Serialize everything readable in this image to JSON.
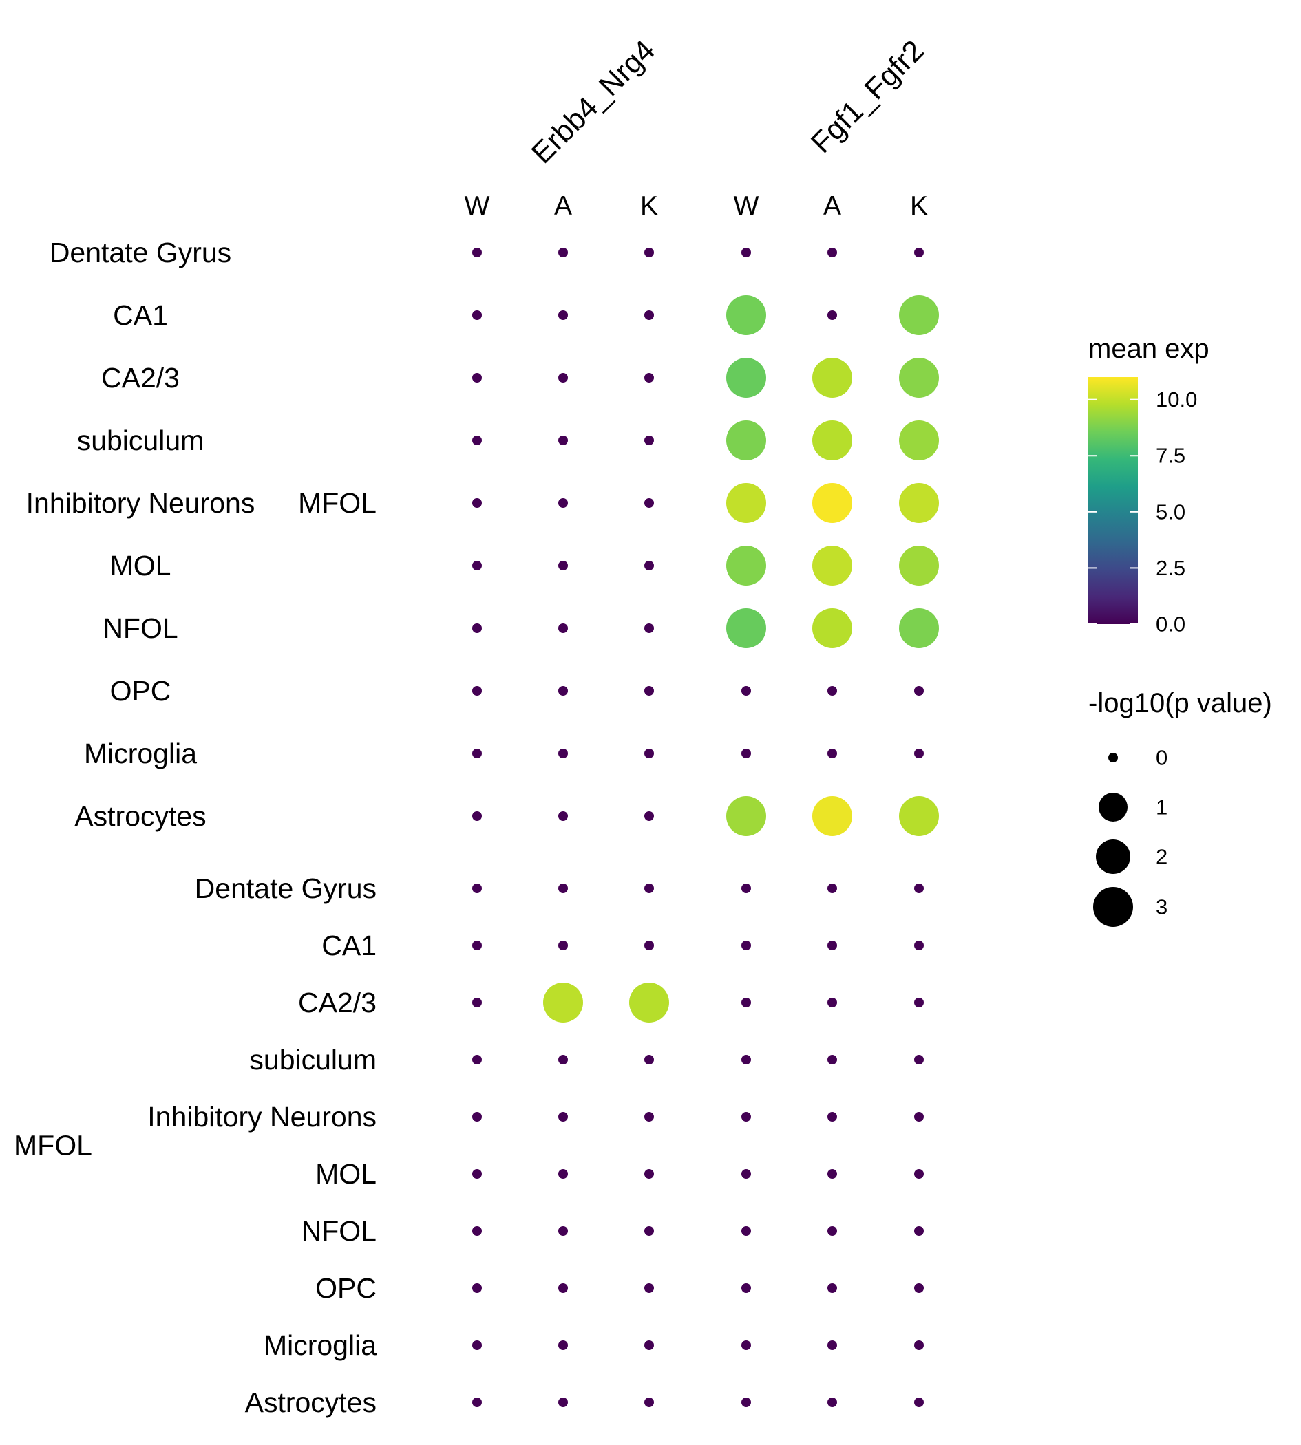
{
  "colors": {
    "viridis": [
      "#440154",
      "#482878",
      "#3e4989",
      "#31688e",
      "#26828e",
      "#1f9e89",
      "#35b779",
      "#6ece58",
      "#b5de2b",
      "#fde725"
    ]
  },
  "chart_data": {
    "type": "scatter",
    "title": "",
    "pairs": [
      "Erbb4_Nrg4",
      "Fgf1_Fgfr2"
    ],
    "conditions": [
      "W",
      "A",
      "K"
    ],
    "columns": [
      {
        "pair": "Erbb4_Nrg4",
        "condition": "W"
      },
      {
        "pair": "Erbb4_Nrg4",
        "condition": "A"
      },
      {
        "pair": "Erbb4_Nrg4",
        "condition": "K"
      },
      {
        "pair": "Fgf1_Fgfr2",
        "condition": "W"
      },
      {
        "pair": "Fgf1_Fgfr2",
        "condition": "A"
      },
      {
        "pair": "Fgf1_Fgfr2",
        "condition": "K"
      }
    ],
    "row_groups": [
      {
        "group": "MFOL",
        "rows": [
          {
            "label": "Dentate Gyrus",
            "mean_exp": [
              0,
              0,
              0,
              0,
              0,
              0
            ],
            "neglog10p": [
              0,
              0,
              0,
              0,
              0,
              0
            ]
          },
          {
            "label": "CA1",
            "mean_exp": [
              0,
              0,
              0,
              8.6,
              0,
              8.9
            ],
            "neglog10p": [
              0,
              0,
              0,
              3,
              0,
              3
            ]
          },
          {
            "label": "CA2/3",
            "mean_exp": [
              0,
              0,
              0,
              8.4,
              9.8,
              9.0
            ],
            "neglog10p": [
              0,
              0,
              0,
              3,
              3,
              3
            ]
          },
          {
            "label": "subiculum",
            "mean_exp": [
              0,
              0,
              0,
              8.8,
              9.8,
              9.3
            ],
            "neglog10p": [
              0,
              0,
              0,
              3,
              3,
              3
            ]
          },
          {
            "label": "Inhibitory Neurons",
            "mean_exp": [
              0,
              0,
              0,
              10.0,
              10.9,
              10.0
            ],
            "neglog10p": [
              0,
              0,
              0,
              3,
              3,
              3
            ]
          },
          {
            "label": "MOL",
            "mean_exp": [
              0,
              0,
              0,
              8.9,
              10.0,
              9.4
            ],
            "neglog10p": [
              0,
              0,
              0,
              3,
              3,
              3
            ]
          },
          {
            "label": "NFOL",
            "mean_exp": [
              0,
              0,
              0,
              8.4,
              9.8,
              8.8
            ],
            "neglog10p": [
              0,
              0,
              0,
              3,
              3,
              3
            ]
          },
          {
            "label": "OPC",
            "mean_exp": [
              0,
              0,
              0,
              0,
              0,
              0
            ],
            "neglog10p": [
              0,
              0,
              0,
              0,
              0,
              0
            ]
          },
          {
            "label": "Microglia",
            "mean_exp": [
              0,
              0,
              0,
              0,
              0,
              0
            ],
            "neglog10p": [
              0,
              0,
              0,
              0,
              0,
              0
            ]
          },
          {
            "label": "Astrocytes",
            "mean_exp": [
              0,
              0,
              0,
              9.4,
              10.7,
              9.8
            ],
            "neglog10p": [
              0,
              0,
              0,
              3,
              3,
              3
            ]
          }
        ]
      },
      {
        "group": "MFOL",
        "rows": [
          {
            "label": "Dentate Gyrus",
            "mean_exp": [
              0,
              0,
              0,
              0,
              0,
              0
            ],
            "neglog10p": [
              0,
              0,
              0,
              0,
              0,
              0
            ]
          },
          {
            "label": "CA1",
            "mean_exp": [
              0,
              0,
              0,
              0,
              0,
              0
            ],
            "neglog10p": [
              0,
              0,
              0,
              0,
              0,
              0
            ]
          },
          {
            "label": "CA2/3",
            "mean_exp": [
              0,
              9.9,
              9.8,
              0,
              0,
              0
            ],
            "neglog10p": [
              0,
              3,
              3,
              0,
              0,
              0
            ]
          },
          {
            "label": "subiculum",
            "mean_exp": [
              0,
              0,
              0,
              0,
              0,
              0
            ],
            "neglog10p": [
              0,
              0,
              0,
              0,
              0,
              0
            ]
          },
          {
            "label": "Inhibitory Neurons",
            "mean_exp": [
              0,
              0,
              0,
              0,
              0,
              0
            ],
            "neglog10p": [
              0,
              0,
              0,
              0,
              0,
              0
            ]
          },
          {
            "label": "MOL",
            "mean_exp": [
              0,
              0,
              0,
              0,
              0,
              0
            ],
            "neglog10p": [
              0,
              0,
              0,
              0,
              0,
              0
            ]
          },
          {
            "label": "NFOL",
            "mean_exp": [
              0,
              0,
              0,
              0,
              0,
              0
            ],
            "neglog10p": [
              0,
              0,
              0,
              0,
              0,
              0
            ]
          },
          {
            "label": "OPC",
            "mean_exp": [
              0,
              0,
              0,
              0,
              0,
              0
            ],
            "neglog10p": [
              0,
              0,
              0,
              0,
              0,
              0
            ]
          },
          {
            "label": "Microglia",
            "mean_exp": [
              0,
              0,
              0,
              0,
              0,
              0
            ],
            "neglog10p": [
              0,
              0,
              0,
              0,
              0,
              0
            ]
          },
          {
            "label": "Astrocytes",
            "mean_exp": [
              0,
              0,
              0,
              0,
              0,
              0
            ],
            "neglog10p": [
              0,
              0,
              0,
              0,
              0,
              0
            ]
          }
        ]
      }
    ],
    "color_legend": {
      "title": "mean exp",
      "range": [
        0,
        11
      ],
      "ticks": [
        0.0,
        2.5,
        5.0,
        7.5,
        10.0
      ],
      "tick_labels": [
        "0.0",
        "2.5",
        "5.0",
        "7.5",
        "10.0"
      ],
      "palette": "viridis"
    },
    "size_legend": {
      "title": "-log10(p value)",
      "values": [
        0,
        1,
        2,
        3
      ],
      "labels": [
        "0",
        "1",
        "2",
        "3"
      ]
    },
    "grid": false,
    "legend_position": "right"
  }
}
